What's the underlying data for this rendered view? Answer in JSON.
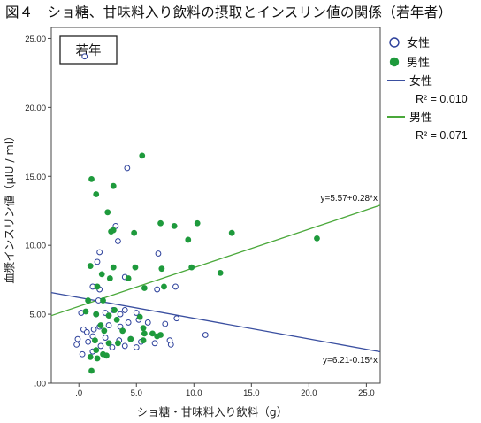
{
  "figure_title": "図４　ショ糖、甘味料入り飲料の摂取とインスリン値の関係（若年者）",
  "chart_data": {
    "type": "scatter",
    "subgroup_label": "若年",
    "xlabel": "ショ糖・甘味料入り飲料（g）",
    "ylabel": "血漿インスリン値（μIU / ml）",
    "xlim": [
      -2.4,
      26.2
    ],
    "ylim": [
      0,
      25.8
    ],
    "xticks": [
      {
        "v": 0,
        "label": ".0"
      },
      {
        "v": 5,
        "label": "5.0"
      },
      {
        "v": 10,
        "label": "10.0"
      },
      {
        "v": 15,
        "label": "15.0"
      },
      {
        "v": 20,
        "label": "20.0"
      },
      {
        "v": 25,
        "label": "25.0"
      }
    ],
    "yticks": [
      {
        "v": 0,
        "label": ".00"
      },
      {
        "v": 5,
        "label": "5.00"
      },
      {
        "v": 10,
        "label": "10.00"
      },
      {
        "v": 15,
        "label": "15.00"
      },
      {
        "v": 20,
        "label": "20.00"
      },
      {
        "v": 25,
        "label": "25.00"
      }
    ],
    "colors": {
      "female": "#2b3f9a",
      "male": "#1e9a3c",
      "female_line": "#3a4fa0",
      "male_line": "#4aa83a"
    },
    "legend": {
      "female_marker": "女性",
      "male_marker": "男性",
      "female_line": "女性",
      "female_r2": "R² = 0.010",
      "male_line": "男性",
      "male_r2": "R² = 0.071"
    },
    "fit_lines": [
      {
        "series": "女性",
        "intercept": 6.21,
        "slope": -0.15,
        "label": "y=6.21-0.15*x"
      },
      {
        "series": "男性",
        "intercept": 5.57,
        "slope": 0.28,
        "label": "y=5.57+0.28*x"
      }
    ],
    "series": [
      {
        "name": "女性",
        "marker": "open-circle",
        "points": [
          [
            0.5,
            23.7
          ],
          [
            4.2,
            15.6
          ],
          [
            3.2,
            11.4
          ],
          [
            3.4,
            10.3
          ],
          [
            1.8,
            9.5
          ],
          [
            6.9,
            9.4
          ],
          [
            1.6,
            8.8
          ],
          [
            4.0,
            7.7
          ],
          [
            1.2,
            7.0
          ],
          [
            1.8,
            6.8
          ],
          [
            6.8,
            6.8
          ],
          [
            8.4,
            7.0
          ],
          [
            1.7,
            6.0
          ],
          [
            0.2,
            5.1
          ],
          [
            1.5,
            5.0
          ],
          [
            2.3,
            5.1
          ],
          [
            3.0,
            5.3
          ],
          [
            4.0,
            5.3
          ],
          [
            5.0,
            5.1
          ],
          [
            3.6,
            5.0
          ],
          [
            0.4,
            3.9
          ],
          [
            0.7,
            3.7
          ],
          [
            1.3,
            3.9
          ],
          [
            1.8,
            4.1
          ],
          [
            2.6,
            4.2
          ],
          [
            3.6,
            4.1
          ],
          [
            4.3,
            4.4
          ],
          [
            5.2,
            4.6
          ],
          [
            6.0,
            4.4
          ],
          [
            7.5,
            4.3
          ],
          [
            8.5,
            4.7
          ],
          [
            -0.1,
            3.2
          ],
          [
            1.2,
            3.4
          ],
          [
            2.3,
            3.3
          ],
          [
            3.5,
            3.1
          ],
          [
            4.5,
            3.2
          ],
          [
            5.4,
            3.0
          ],
          [
            7.9,
            3.1
          ],
          [
            11.0,
            3.5
          ],
          [
            -0.2,
            2.8
          ],
          [
            0.8,
            3.0
          ],
          [
            1.9,
            2.7
          ],
          [
            2.9,
            2.6
          ],
          [
            4.0,
            2.7
          ],
          [
            5.0,
            2.6
          ],
          [
            6.6,
            2.9
          ],
          [
            8.0,
            2.8
          ],
          [
            0.3,
            2.1
          ],
          [
            1.2,
            2.3
          ]
        ]
      },
      {
        "name": "男性",
        "marker": "filled-circle",
        "points": [
          [
            5.5,
            16.5
          ],
          [
            1.1,
            14.8
          ],
          [
            3.0,
            14.3
          ],
          [
            1.5,
            13.7
          ],
          [
            2.5,
            12.4
          ],
          [
            7.1,
            11.6
          ],
          [
            8.3,
            11.4
          ],
          [
            10.3,
            11.6
          ],
          [
            3.0,
            11.1
          ],
          [
            13.3,
            10.9
          ],
          [
            2.8,
            11.0
          ],
          [
            4.8,
            10.9
          ],
          [
            9.5,
            10.4
          ],
          [
            20.7,
            10.5
          ],
          [
            1.0,
            8.5
          ],
          [
            3.0,
            8.4
          ],
          [
            4.9,
            8.4
          ],
          [
            7.2,
            8.3
          ],
          [
            9.8,
            8.4
          ],
          [
            2.0,
            7.9
          ],
          [
            4.3,
            7.6
          ],
          [
            2.7,
            7.6
          ],
          [
            7.4,
            7.0
          ],
          [
            12.3,
            8.0
          ],
          [
            1.6,
            7.0
          ],
          [
            5.7,
            6.9
          ],
          [
            0.8,
            6.0
          ],
          [
            2.1,
            6.0
          ],
          [
            3.1,
            5.3
          ],
          [
            0.6,
            5.2
          ],
          [
            1.5,
            5.0
          ],
          [
            2.6,
            4.9
          ],
          [
            3.3,
            4.6
          ],
          [
            5.3,
            4.8
          ],
          [
            1.9,
            4.2
          ],
          [
            2.2,
            3.8
          ],
          [
            3.8,
            3.8
          ],
          [
            5.6,
            4.0
          ],
          [
            6.4,
            3.6
          ],
          [
            6.8,
            3.4
          ],
          [
            7.1,
            3.5
          ],
          [
            1.4,
            3.1
          ],
          [
            2.6,
            2.9
          ],
          [
            3.4,
            2.9
          ],
          [
            4.5,
            3.2
          ],
          [
            5.6,
            3.1
          ],
          [
            1.5,
            2.4
          ],
          [
            2.1,
            2.1
          ],
          [
            1.0,
            1.9
          ],
          [
            1.6,
            1.8
          ],
          [
            1.1,
            0.9
          ],
          [
            2.4,
            2.0
          ],
          [
            5.7,
            3.6
          ]
        ]
      }
    ]
  }
}
